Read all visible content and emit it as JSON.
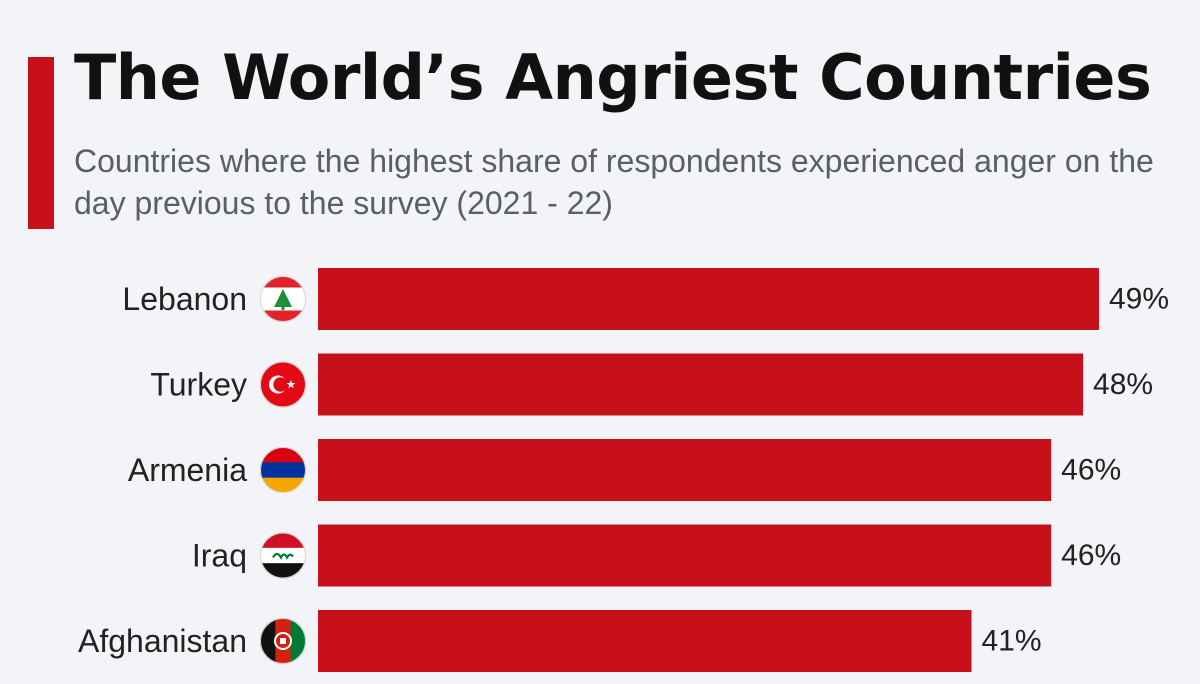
{
  "header": {
    "title": "The World’s Angriest Countries",
    "subtitle": "Countries where the highest share of respondents experienced anger on the day previous to the survey (2021 - 22)"
  },
  "colors": {
    "accent": "#c8101a",
    "bar": "#c8101a",
    "background": "#f2f4f7"
  },
  "chart_data": {
    "type": "bar",
    "orientation": "horizontal",
    "categories": [
      "Lebanon",
      "Turkey",
      "Armenia",
      "Iraq",
      "Afghanistan"
    ],
    "values": [
      49,
      48,
      46,
      46,
      41
    ],
    "value_labels": [
      "49%",
      "48%",
      "46%",
      "46%",
      "41%"
    ],
    "flags": [
      "lebanon-flag-icon",
      "turkey-flag-icon",
      "armenia-flag-icon",
      "iraq-flag-icon",
      "afghanistan-flag-icon"
    ],
    "title": "The World’s Angriest Countries",
    "xlabel": "",
    "ylabel": "",
    "xlim": [
      0,
      49
    ],
    "grid": false,
    "legend": "none"
  }
}
